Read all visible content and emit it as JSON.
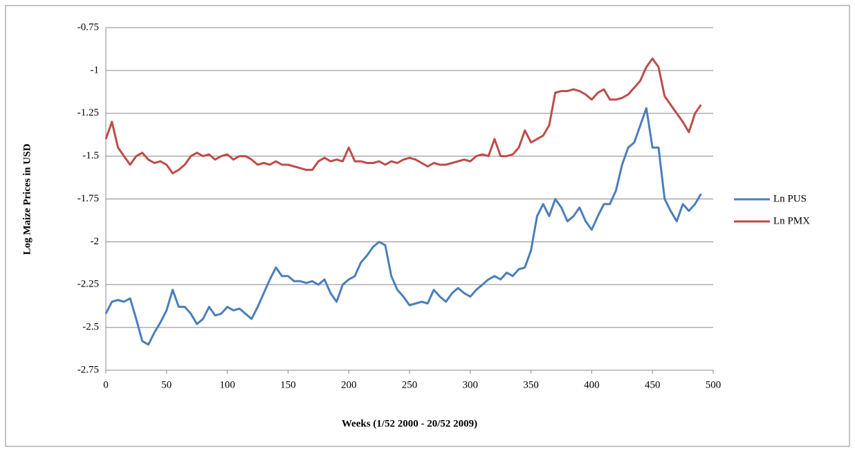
{
  "chart_data": {
    "type": "line",
    "x_label": "Weeks (1/52 2000 - 20/52 2009)",
    "y_label": "Log Maize Prices in USD",
    "x": [
      0,
      5,
      10,
      15,
      20,
      25,
      30,
      35,
      40,
      45,
      50,
      55,
      60,
      65,
      70,
      75,
      80,
      85,
      90,
      95,
      100,
      105,
      110,
      115,
      120,
      125,
      130,
      135,
      140,
      145,
      150,
      155,
      160,
      165,
      170,
      175,
      180,
      185,
      190,
      195,
      200,
      205,
      210,
      215,
      220,
      225,
      230,
      235,
      240,
      245,
      250,
      255,
      260,
      265,
      270,
      275,
      280,
      285,
      290,
      295,
      300,
      305,
      310,
      315,
      320,
      325,
      330,
      335,
      340,
      345,
      350,
      355,
      360,
      365,
      370,
      375,
      380,
      385,
      390,
      395,
      400,
      405,
      410,
      415,
      420,
      425,
      430,
      435,
      440,
      445,
      450,
      455,
      460,
      465,
      470,
      475,
      480,
      485,
      490
    ],
    "series": [
      {
        "name": "Ln PUS",
        "color": "#4a7ebb",
        "values": [
          -2.42,
          -2.35,
          -2.34,
          -2.35,
          -2.33,
          -2.45,
          -2.58,
          -2.6,
          -2.53,
          -2.47,
          -2.4,
          -2.28,
          -2.38,
          -2.38,
          -2.42,
          -2.48,
          -2.45,
          -2.38,
          -2.43,
          -2.42,
          -2.38,
          -2.4,
          -2.39,
          -2.42,
          -2.45,
          -2.38,
          -2.3,
          -2.22,
          -2.15,
          -2.2,
          -2.2,
          -2.23,
          -2.23,
          -2.24,
          -2.23,
          -2.25,
          -2.22,
          -2.3,
          -2.35,
          -2.25,
          -2.22,
          -2.2,
          -2.12,
          -2.08,
          -2.03,
          -2.0,
          -2.02,
          -2.2,
          -2.28,
          -2.32,
          -2.37,
          -2.36,
          -2.35,
          -2.36,
          -2.28,
          -2.32,
          -2.35,
          -2.3,
          -2.27,
          -2.3,
          -2.32,
          -2.28,
          -2.25,
          -2.22,
          -2.2,
          -2.22,
          -2.18,
          -2.2,
          -2.16,
          -2.15,
          -2.05,
          -1.85,
          -1.78,
          -1.85,
          -1.75,
          -1.8,
          -1.88,
          -1.85,
          -1.8,
          -1.88,
          -1.93,
          -1.85,
          -1.78,
          -1.78,
          -1.7,
          -1.55,
          -1.45,
          -1.42,
          -1.32,
          -1.22,
          -1.45,
          -1.45,
          -1.75,
          -1.82,
          -1.88,
          -1.78,
          -1.82,
          -1.78,
          -1.72
        ]
      },
      {
        "name": "Ln PMX",
        "color": "#be4b48",
        "values": [
          -1.4,
          -1.3,
          -1.45,
          -1.5,
          -1.55,
          -1.5,
          -1.48,
          -1.52,
          -1.54,
          -1.53,
          -1.55,
          -1.6,
          -1.58,
          -1.55,
          -1.5,
          -1.48,
          -1.5,
          -1.49,
          -1.52,
          -1.5,
          -1.49,
          -1.52,
          -1.5,
          -1.5,
          -1.52,
          -1.55,
          -1.54,
          -1.55,
          -1.53,
          -1.55,
          -1.55,
          -1.56,
          -1.57,
          -1.58,
          -1.58,
          -1.53,
          -1.51,
          -1.53,
          -1.52,
          -1.53,
          -1.45,
          -1.53,
          -1.53,
          -1.54,
          -1.54,
          -1.53,
          -1.55,
          -1.53,
          -1.54,
          -1.52,
          -1.51,
          -1.52,
          -1.54,
          -1.56,
          -1.54,
          -1.55,
          -1.55,
          -1.54,
          -1.53,
          -1.52,
          -1.53,
          -1.5,
          -1.49,
          -1.5,
          -1.4,
          -1.5,
          -1.5,
          -1.49,
          -1.45,
          -1.35,
          -1.42,
          -1.4,
          -1.38,
          -1.32,
          -1.13,
          -1.12,
          -1.12,
          -1.11,
          -1.12,
          -1.14,
          -1.17,
          -1.13,
          -1.11,
          -1.17,
          -1.17,
          -1.16,
          -1.14,
          -1.1,
          -1.06,
          -0.98,
          -0.93,
          -0.98,
          -1.15,
          -1.2,
          -1.25,
          -1.3,
          -1.36,
          -1.25,
          -1.2
        ]
      }
    ],
    "xlim": [
      0,
      500
    ],
    "xticks": [
      0,
      50,
      100,
      150,
      200,
      250,
      300,
      350,
      400,
      450,
      500
    ],
    "ylim": [
      -2.75,
      -0.75
    ],
    "yticks": [
      -2.75,
      -2.5,
      -2.25,
      -2,
      -1.75,
      -1.5,
      -1.25,
      -1,
      -0.75
    ],
    "grid": true,
    "legend": "right"
  }
}
